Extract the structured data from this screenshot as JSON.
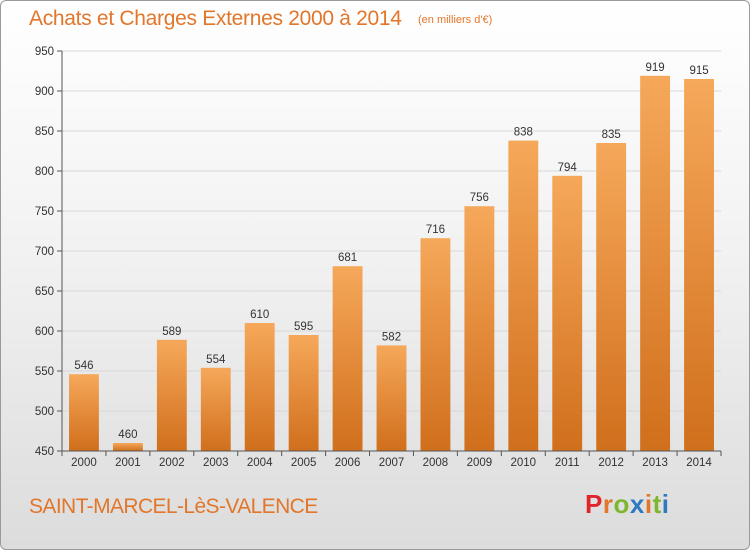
{
  "header": {
    "title": "Achats et Charges Externes 2000 à 2014",
    "unit": "(en milliers d'€)"
  },
  "footer": {
    "place": "SAINT-MARCEL-LèS-VALENCE",
    "logo": "Proxiti"
  },
  "colors": {
    "accent": "#e2762a",
    "bar_light": "#f6a85a",
    "bar_dark": "#d06f1c",
    "logo_letters": [
      "#e0262b",
      "#e2762a",
      "#7db72f",
      "#2f79bf",
      "#e2762a",
      "#7db72f",
      "#2f79bf"
    ]
  },
  "chart_data": {
    "type": "bar",
    "title": "Achats et Charges Externes 2000 à 2014",
    "subtitle": "(en milliers d'€)",
    "categories": [
      "2000",
      "2001",
      "2002",
      "2003",
      "2004",
      "2005",
      "2006",
      "2007",
      "2008",
      "2009",
      "2010",
      "2011",
      "2012",
      "2013",
      "2014"
    ],
    "values": [
      546,
      460,
      589,
      554,
      610,
      595,
      681,
      582,
      716,
      756,
      838,
      794,
      835,
      919,
      915
    ],
    "ylim": [
      450,
      950
    ],
    "yticks": [
      450,
      500,
      550,
      600,
      650,
      700,
      750,
      800,
      850,
      900,
      950
    ],
    "xlabel": "",
    "ylabel": "",
    "grid": true,
    "data_labels": true
  }
}
